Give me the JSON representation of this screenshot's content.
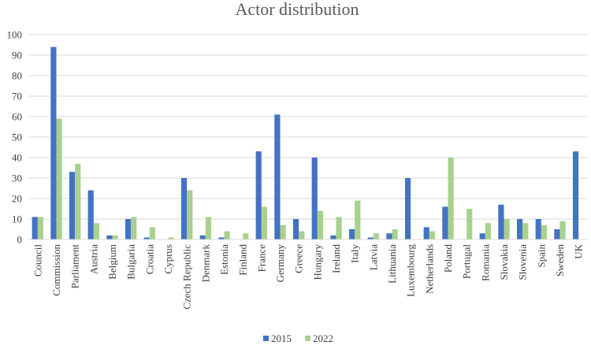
{
  "chart_data": {
    "type": "bar",
    "title": "Actor distribution",
    "xlabel": "",
    "ylabel": "",
    "ylim": [
      0,
      100
    ],
    "yticks": [
      0,
      10,
      20,
      30,
      40,
      50,
      60,
      70,
      80,
      90,
      100
    ],
    "grid": true,
    "legend_position": "bottom",
    "categories": [
      "Council",
      "Commission",
      "Parliament",
      "Austria",
      "Belgium",
      "Bulgaria",
      "Croatia",
      "Cyprus",
      "Czech Republic",
      "Denmark",
      "Estonia",
      "Finland",
      "France",
      "Germany",
      "Greece",
      "Hungary",
      "Ireland",
      "Italy",
      "Latvia",
      "Lithuania",
      "Luxembourg",
      "Netherlands",
      "Poland",
      "Portugal",
      "Romania",
      "Slovakia",
      "Slovenia",
      "Spain",
      "Sweden",
      "UK"
    ],
    "series": [
      {
        "name": "2015",
        "color": "#4472c4",
        "values": [
          11,
          94,
          33,
          24,
          2,
          10,
          1,
          0,
          30,
          2,
          1,
          0,
          43,
          61,
          10,
          40,
          2,
          5,
          1,
          3,
          30,
          6,
          16,
          0,
          3,
          17,
          10,
          10,
          5,
          43
        ]
      },
      {
        "name": "2022",
        "color": "#a9d18e",
        "values": [
          11,
          59,
          37,
          8,
          2,
          11,
          6,
          1,
          24,
          11,
          4,
          3,
          16,
          7,
          4,
          14,
          11,
          19,
          3,
          5,
          0,
          4,
          40,
          15,
          8,
          10,
          8,
          7,
          9,
          0
        ]
      }
    ]
  }
}
